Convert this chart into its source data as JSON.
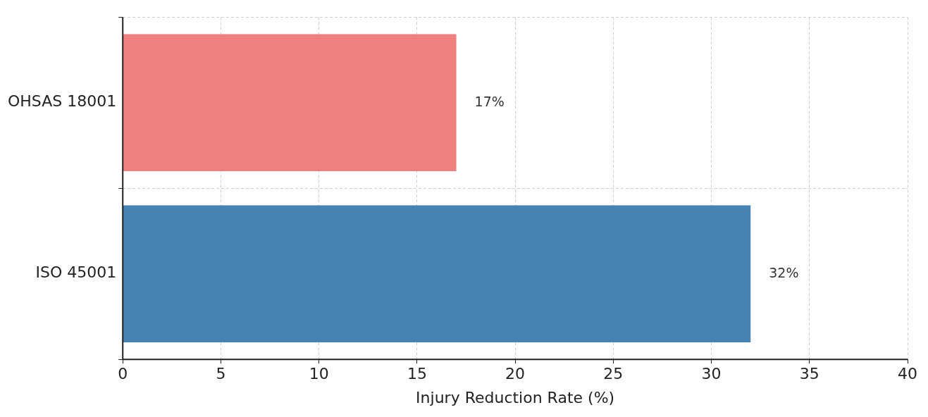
{
  "chart_data": {
    "type": "bar",
    "orientation": "horizontal",
    "xlabel": "Injury Reduction Rate (%)",
    "categories": [
      "OHSAS 18001",
      "ISO 45001"
    ],
    "values": [
      17,
      32
    ],
    "colors": [
      "#f08080",
      "#4682b4"
    ],
    "value_labels": [
      "17%",
      "32%"
    ],
    "xlim": [
      0,
      40
    ],
    "xticks": [
      0,
      5,
      10,
      15,
      20,
      25,
      30,
      35,
      40
    ],
    "grid": true,
    "legend": false
  }
}
